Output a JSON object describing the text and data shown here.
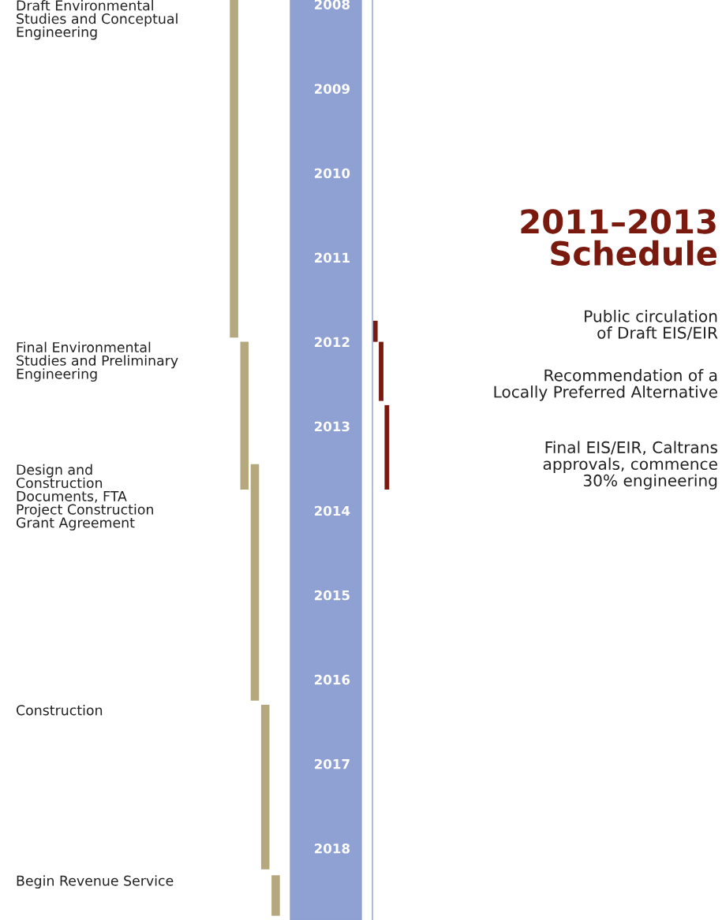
{
  "chart_data": [
    {
      "type": "bar",
      "categories": [
        null,
        null,
        null,
        null,
        null
      ],
      "base": [
        2007.95,
        2012.0,
        2013.45,
        2016.3,
        2018.32
      ],
      "values": [
        4.0,
        1.75,
        2.8,
        1.95,
        0.48
      ],
      "color": "#b5a87e",
      "ylim": [
        2018.85,
        2007.95
      ],
      "yticks": [
        2008,
        2009,
        2010,
        2011,
        2012,
        2013,
        2014,
        2015,
        2016,
        2017,
        2018
      ],
      "tick_labels": "y",
      "annotations": [
        "Draft Environmental\nStudies and Conceptual\nEngineering",
        "Final Environmental\nStudies and Preliminary\nEngineering",
        "Design and\nConstruction\nDocuments, FTA\nProject Construction\nGrant Agreement",
        "Construction",
        "Begin Revenue Service"
      ]
    },
    {
      "type": "bar",
      "categories": [
        null,
        null,
        null
      ],
      "base": [
        2011.75,
        2012.0,
        2012.75
      ],
      "values": [
        0.25,
        0.7,
        1.0
      ],
      "color": "#7a1a0f",
      "ylim": [
        2018.85,
        2007.95
      ],
      "yticks": [
        2008,
        2009,
        2010,
        2011,
        2012,
        2013,
        2014,
        2015,
        2016,
        2017,
        2018
      ],
      "tick_labels": false,
      "annotations": [
        "Public circulation\nof Draft EIS/EIR",
        "Recommendation of a\nLocally Preferred Alternative",
        "Final EIS/EIR, Caltrans\napprovals, commence\n30% engineering",
        "2011–2013\nSchedule"
      ]
    }
  ]
}
